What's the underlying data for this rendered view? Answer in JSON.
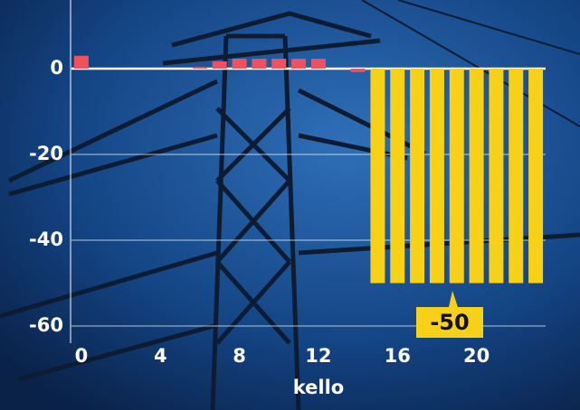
{
  "chart_data": {
    "type": "bar",
    "x": [
      0,
      1,
      2,
      3,
      4,
      5,
      6,
      7,
      8,
      9,
      10,
      11,
      12,
      13,
      14,
      15,
      16,
      17,
      18,
      19,
      20,
      21,
      22,
      23
    ],
    "series": [
      {
        "values": [
          3,
          0,
          0,
          0,
          0,
          0,
          0.4,
          1.7,
          2.3,
          2.3,
          2.3,
          2.3,
          2.3,
          0,
          -0.8,
          -50,
          -50,
          -50,
          -50,
          -50,
          -50,
          -50,
          -50,
          -50
        ],
        "colors": [
          "#f25060",
          "#f25060",
          "#f25060",
          "#f25060",
          "#f25060",
          "#f25060",
          "#f25060",
          "#f25060",
          "#f25060",
          "#f25060",
          "#f25060",
          "#f25060",
          "#f25060",
          "#f25060",
          "#f25060",
          "#f7d117",
          "#f7d117",
          "#f7d117",
          "#f7d117",
          "#f7d117",
          "#f7d117",
          "#f7d117",
          "#f7d117",
          "#f7d117"
        ]
      }
    ],
    "xlim": [
      -0.5,
      23.5
    ],
    "xticks": [
      0,
      4,
      8,
      12,
      16,
      20
    ],
    "ylim": [
      -64,
      16
    ],
    "yticks": [
      0,
      -20,
      -40,
      -60
    ],
    "xlabel": "kello",
    "grid": true,
    "annotation": {
      "text": "-50",
      "color": "#f7d117"
    }
  }
}
